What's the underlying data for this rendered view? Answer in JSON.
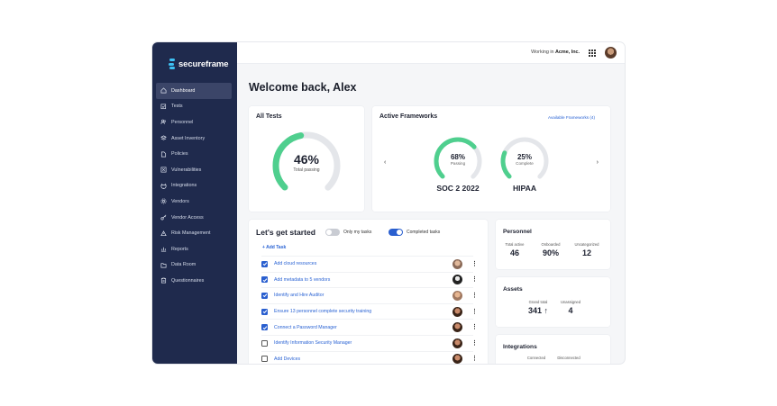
{
  "brand": {
    "name": "secureframe",
    "accent": "#3ec1f3",
    "sidebar_bg": "#1f2a4d"
  },
  "sidebar": {
    "items": [
      {
        "label": "Dashboard",
        "icon": "home-icon",
        "active": true
      },
      {
        "label": "Tests",
        "icon": "checkbox-icon"
      },
      {
        "label": "Personnel",
        "icon": "people-icon"
      },
      {
        "label": "Asset Inventory",
        "icon": "stack-icon"
      },
      {
        "label": "Policies",
        "icon": "document-icon"
      },
      {
        "label": "Vulnerabilities",
        "icon": "bug-icon"
      },
      {
        "label": "Integrations",
        "icon": "plug-icon"
      },
      {
        "label": "Vendors",
        "icon": "gear-icon"
      },
      {
        "label": "Vendor Access",
        "icon": "key-icon"
      },
      {
        "label": "Risk Management",
        "icon": "warning-icon"
      },
      {
        "label": "Reports",
        "icon": "chart-icon"
      },
      {
        "label": "Data Room",
        "icon": "folder-icon"
      },
      {
        "label": "Questionnaires",
        "icon": "clipboard-icon"
      }
    ]
  },
  "topbar": {
    "working_prefix": "Working in ",
    "workspace": "Acme, Inc."
  },
  "welcome": "Welcome back, Alex",
  "all_tests": {
    "title": "All Tests",
    "percent_text": "46%",
    "percent": 46,
    "label": "Total passing"
  },
  "frameworks": {
    "title": "Active Frameworks",
    "available_link": "Available Frameworks (4)",
    "items": [
      {
        "name": "SOC 2 2022",
        "percent_text": "68%",
        "percent": 68,
        "label": "Passing"
      },
      {
        "name": "HIPAA",
        "percent_text": "25%",
        "percent": 25,
        "label": "Complete"
      }
    ]
  },
  "getting_started": {
    "title": "Let's get started",
    "toggle_my_tasks": "Only my tasks",
    "toggle_completed": "Completed tasks",
    "add_task": "+ Add Task",
    "tasks": [
      {
        "text": "Add cloud resources",
        "done": true
      },
      {
        "text": "Add metadata to 5 vendors",
        "done": true
      },
      {
        "text": "Identify and Hire Auditor",
        "done": true
      },
      {
        "text": "Ensure 13 personnel complete security training",
        "done": true
      },
      {
        "text": "Connect a Password Manager",
        "done": true
      },
      {
        "text": "Identify Information Security Manager",
        "done": false
      },
      {
        "text": "Add Devices",
        "done": false
      }
    ]
  },
  "personnel": {
    "title": "Personnel",
    "stats": [
      {
        "label": "Total active",
        "value": "46"
      },
      {
        "label": "Onboarded",
        "value": "90%"
      },
      {
        "label": "Uncategorized",
        "value": "12"
      }
    ]
  },
  "assets": {
    "title": "Assets",
    "stats": [
      {
        "label": "Grand total",
        "value": "341 ↑"
      },
      {
        "label": "Unassigned",
        "value": "4"
      }
    ]
  },
  "integrations": {
    "title": "Integrations",
    "stats": [
      {
        "label": "Connected"
      },
      {
        "label": "Disconnected"
      }
    ]
  },
  "colors": {
    "progress": "#4fcf8e",
    "track": "#e4e6ea",
    "link": "#2a63d4",
    "checkbox": "#2a5fcf"
  }
}
